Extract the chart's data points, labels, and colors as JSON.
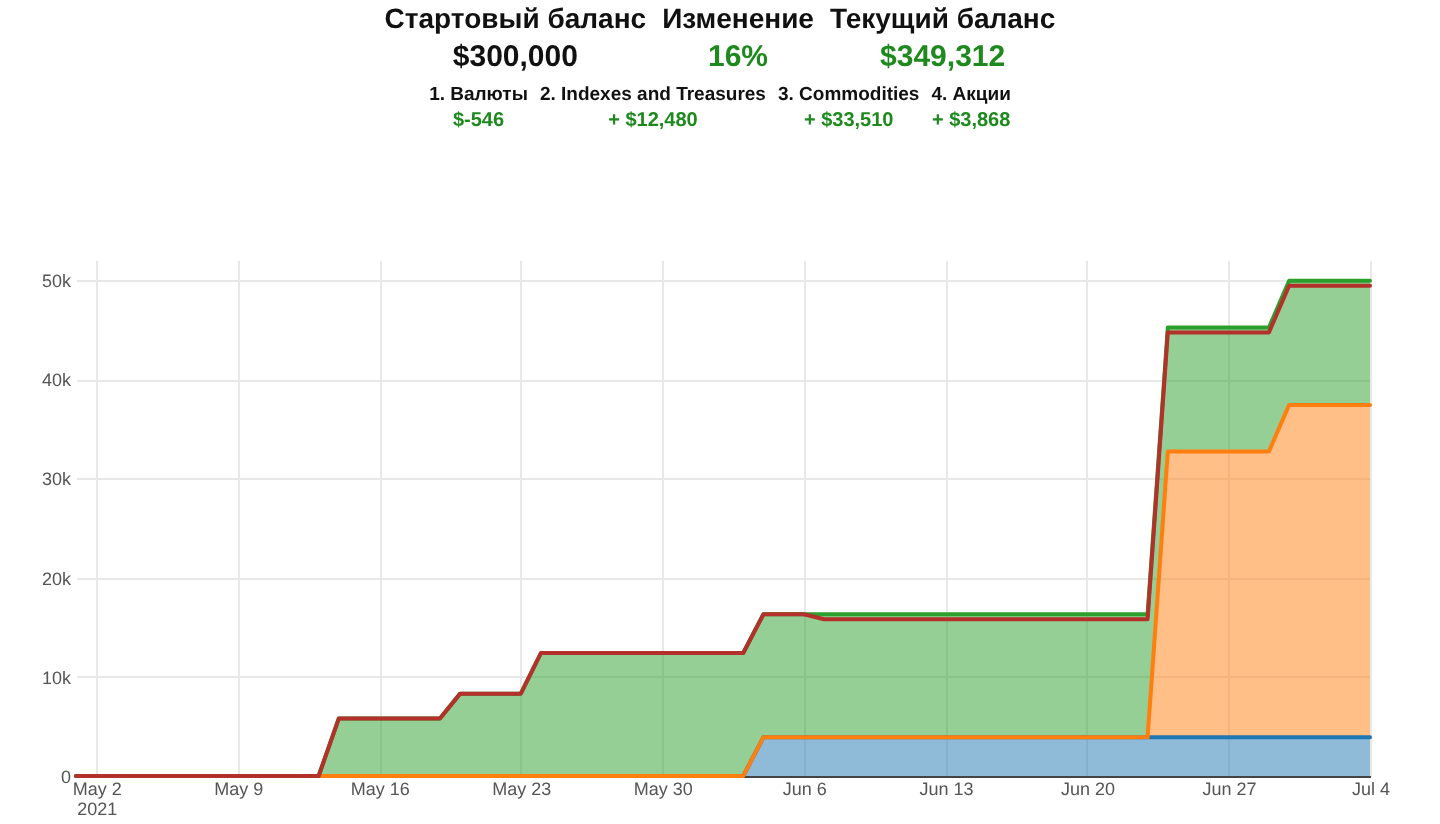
{
  "chart_data": {
    "type": "area",
    "stacked": true,
    "annotations": [
      "Стартовый баланс",
      "Изменение",
      "Текущий баланс",
      "$300,000",
      "16%",
      "$349,312",
      "1. Валюты",
      "2. Indexes and Treasures",
      "3. Commodities",
      "4. Акции",
      "$-546",
      "+ $12,480",
      "+ $33,510",
      "+ $3,868"
    ],
    "x": [
      "2021-05-01",
      "2021-05-13",
      "2021-05-14",
      "2021-05-19",
      "2021-05-20",
      "2021-05-23",
      "2021-05-24",
      "2021-06-03",
      "2021-06-04",
      "2021-06-06",
      "2021-06-07",
      "2021-06-23",
      "2021-06-24",
      "2021-06-29",
      "2021-06-30",
      "2021-07-04"
    ],
    "series": [
      {
        "color": "#1f77b4",
        "values": [
          0,
          0,
          0,
          0,
          0,
          0,
          0,
          0,
          3900,
          3900,
          3900,
          3900,
          3900,
          3900,
          3900,
          3900
        ]
      },
      {
        "color": "#ff7f0e",
        "values": [
          0,
          0,
          0,
          0,
          0,
          0,
          0,
          0,
          0,
          0,
          0,
          0,
          28800,
          28800,
          33500,
          33500
        ]
      },
      {
        "color": "#2ca02c",
        "values": [
          0,
          0,
          5800,
          5800,
          8300,
          8300,
          12400,
          12400,
          12400,
          12400,
          12400,
          12400,
          12500,
          12500,
          12500,
          12500
        ]
      },
      {
        "type": "line",
        "color": "#b4302a",
        "values": [
          0,
          0,
          5800,
          5800,
          8300,
          8300,
          12400,
          12400,
          16300,
          16300,
          15800,
          15800,
          44700,
          44700,
          49400,
          49400
        ]
      }
    ],
    "xlim": [
      "2021-05-01",
      "2021-07-04"
    ],
    "xticks": [
      {
        "value": "2021-05-02",
        "label": "May 2\n2021"
      },
      {
        "value": "2021-05-09",
        "label": "May 9"
      },
      {
        "value": "2021-05-16",
        "label": "May 16"
      },
      {
        "value": "2021-05-23",
        "label": "May 23"
      },
      {
        "value": "2021-05-30",
        "label": "May 30"
      },
      {
        "value": "2021-06-06",
        "label": "Jun 6"
      },
      {
        "value": "2021-06-13",
        "label": "Jun 13"
      },
      {
        "value": "2021-06-20",
        "label": "Jun 20"
      },
      {
        "value": "2021-06-27",
        "label": "Jun 27"
      },
      {
        "value": "2021-07-04",
        "label": "Jul 4"
      }
    ],
    "ylim": [
      0,
      52000
    ],
    "yticks": [
      0,
      {
        "value": 10000,
        "label": "10k"
      },
      {
        "value": 20000,
        "label": "20k"
      },
      {
        "value": 30000,
        "label": "30k"
      },
      {
        "value": 40000,
        "label": "40k"
      },
      {
        "value": 50000,
        "label": "50k"
      }
    ],
    "grid": true
  }
}
